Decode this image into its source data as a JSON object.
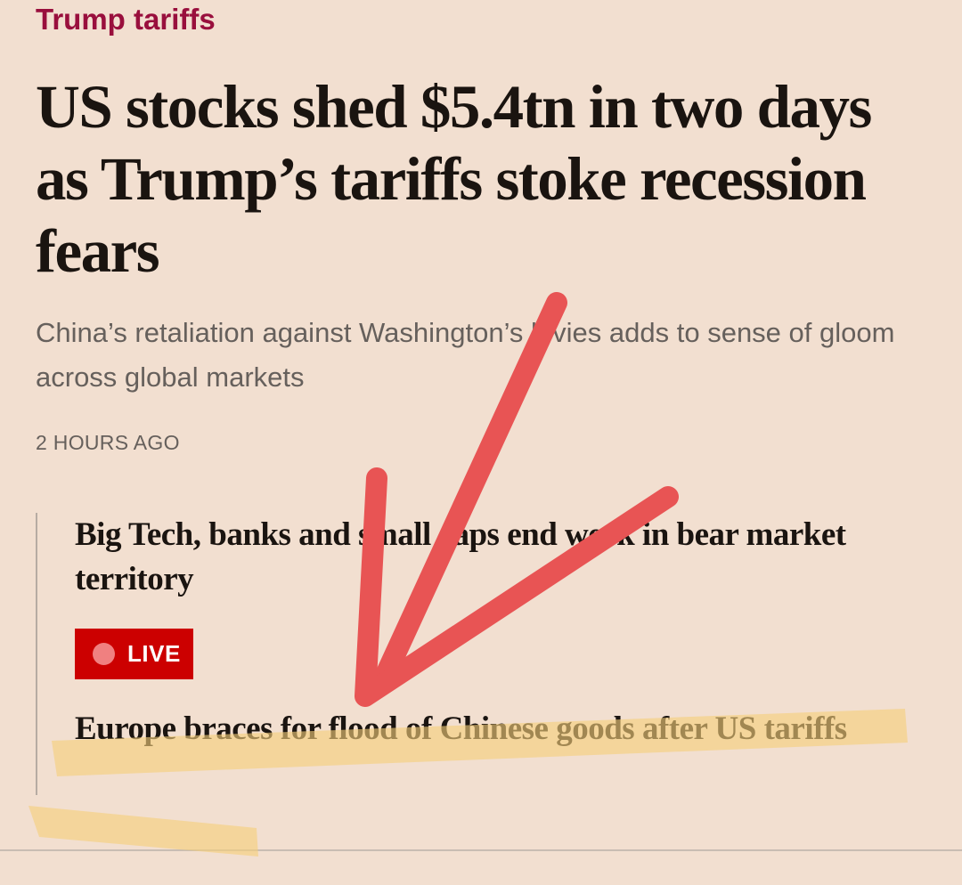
{
  "article": {
    "topic_tag": "Trump tariffs",
    "headline": "US stocks shed $5.4tn in two days as Trump’s tariffs stoke recession fears",
    "standfirst": "China’s retaliation against Washington’s levies adds to sense of gloom across global markets",
    "timestamp": "2 HOURS AGO"
  },
  "related": {
    "items": [
      {
        "title": "Big Tech, banks and small caps end week in bear market territory"
      },
      {
        "title": "Europe braces for flood of Chinese goods after US tariffs"
      }
    ],
    "live_badge": {
      "label": "LIVE"
    }
  },
  "colors": {
    "background": "#f2dfd0",
    "topic_tag": "#990f3d",
    "live_badge": "#cc0000",
    "annotation_arrow": "#e85454",
    "annotation_highlight": "#f5cf7a"
  },
  "icons": {
    "live_indicator": "live-dot-icon",
    "arrow": "arrow-annotation-icon"
  }
}
